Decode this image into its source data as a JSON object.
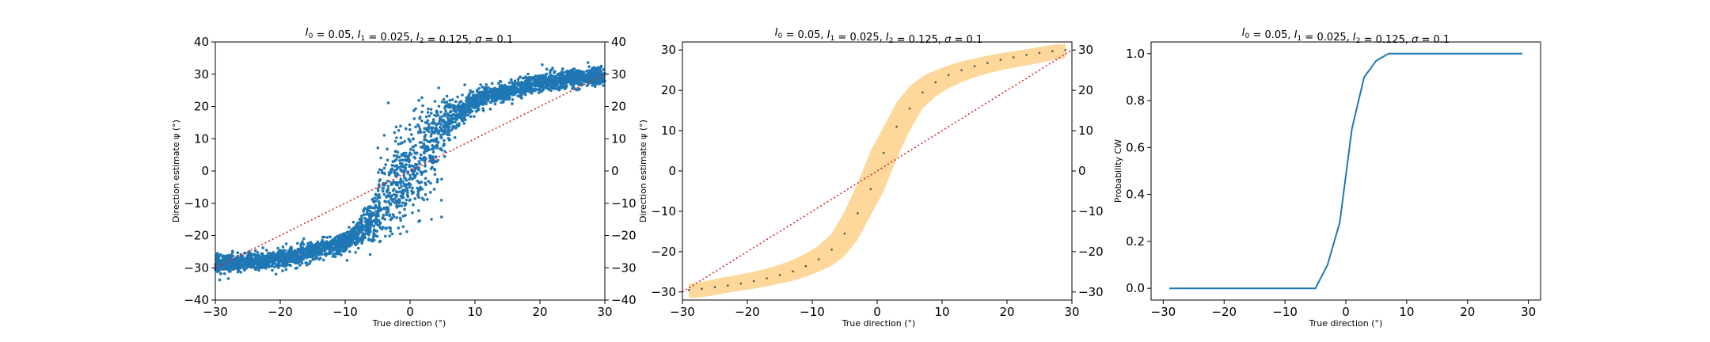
{
  "colors": {
    "scatter": "#1f77b4",
    "identity_line": "#d62728",
    "band": "#fdd89a",
    "mean_dots": "#555555",
    "curve": "#1f77b4"
  },
  "chart_data": [
    {
      "type": "scatter",
      "title": "I0 = 0.05, I1 = 0.025, I2 = 0.125, σ = 0.1",
      "title_parts": [
        "I",
        "0",
        " = 0.05, ",
        "I",
        "1",
        " = 0.025, ",
        "I",
        "2",
        " = 0.125, ",
        "σ",
        " = 0.1"
      ],
      "xlabel": "True direction (°)",
      "ylabel": "Direction estimate ψ (°)",
      "xlim": [
        -30,
        30
      ],
      "ylim": [
        -40,
        40
      ],
      "xticks": [
        "−30",
        "−20",
        "−10",
        "0",
        "10",
        "20",
        "30"
      ],
      "yticks_left": [
        "40",
        "30",
        "20",
        "10",
        "0",
        "−10",
        "−20",
        "−30",
        "−40"
      ],
      "yticks_right": [
        "40",
        "30",
        "20",
        "10",
        "0",
        "−10",
        "−20",
        "−30",
        "−40"
      ],
      "x_domain": [
        -30,
        30
      ],
      "description_model": "estimate follows a sigmoid of true direction: about −30 at x=−30, crossing 0 near x=0, about +30 at x=30, with spread of ~2–8 degrees",
      "sigmoid_anchor_points": [
        [
          -30,
          -29
        ],
        [
          -20,
          -27.5
        ],
        [
          -10,
          -22
        ],
        [
          -5,
          -14
        ],
        [
          0,
          0
        ],
        [
          5,
          14
        ],
        [
          10,
          22
        ],
        [
          20,
          27.5
        ],
        [
          30,
          29.5
        ]
      ],
      "identity_line": {
        "from": [
          -30,
          -30
        ],
        "to": [
          30,
          30
        ],
        "style": "dotted"
      },
      "grid": false
    },
    {
      "type": "area",
      "title": "I0 = 0.05, I1 = 0.025, I2 = 0.125, σ = 0.1",
      "title_parts": [
        "I",
        "0",
        " = 0.05, ",
        "I",
        "1",
        " = 0.025, ",
        "I",
        "2",
        " = 0.125, ",
        "σ",
        " = 0.1"
      ],
      "xlabel": "True direction (°)",
      "ylabel": "Direction estimate ψ (°)",
      "xlim": [
        -30,
        30
      ],
      "ylim": [
        -32,
        32
      ],
      "xticks": [
        "−30",
        "−20",
        "−10",
        "0",
        "10",
        "20",
        "30"
      ],
      "yticks_left": [
        "30",
        "20",
        "10",
        "0",
        "−10",
        "−20",
        "−30"
      ],
      "yticks_right": [
        "30",
        "20",
        "10",
        "0",
        "−10",
        "−20",
        "−30"
      ],
      "x": [
        -29,
        -27,
        -25,
        -23,
        -21,
        -19,
        -17,
        -15,
        -13,
        -11,
        -9,
        -7,
        -5,
        -3,
        -1,
        1,
        3,
        5,
        7,
        9,
        11,
        13,
        15,
        17,
        19,
        21,
        23,
        25,
        27,
        29
      ],
      "mean": [
        -29.5,
        -29.2,
        -28.8,
        -28.4,
        -27.9,
        -27.3,
        -26.6,
        -25.8,
        -24.9,
        -23.6,
        -21.9,
        -19.5,
        -15.5,
        -10.5,
        -4.5,
        4.5,
        11,
        15.5,
        19.5,
        22,
        23.8,
        25,
        26,
        26.8,
        27.6,
        28.2,
        28.8,
        29.3,
        29.7,
        30
      ],
      "upper": [
        -28,
        -27.5,
        -26.8,
        -26.2,
        -25.6,
        -25,
        -24.2,
        -23.2,
        -22,
        -20.5,
        -18.5,
        -15.5,
        -10,
        -3,
        5,
        11,
        17,
        21,
        23.5,
        25,
        26.2,
        27.2,
        27.9,
        28.6,
        29.2,
        29.7,
        30.2,
        30.8,
        31.3,
        31.5
      ],
      "lower": [
        -31.5,
        -31.3,
        -30.8,
        -30.2,
        -29.7,
        -29.2,
        -28.6,
        -27.9,
        -27.2,
        -26.2,
        -25,
        -23.5,
        -21,
        -17,
        -11,
        -5,
        3,
        10,
        15.5,
        18.5,
        20.5,
        22,
        23.2,
        24.2,
        25,
        25.6,
        26.2,
        26.8,
        27.5,
        28
      ]
    },
    {
      "type": "line",
      "title": "I0 = 0.05, I1 = 0.025, I2 = 0.125, σ = 0.1",
      "title_parts": [
        "I",
        "0",
        " = 0.05, ",
        "I",
        "1",
        " = 0.025, ",
        "I",
        "2",
        " = 0.125, ",
        "σ",
        " = 0.1"
      ],
      "xlabel": "True direction (°)",
      "ylabel": "Probability CW",
      "xlim": [
        -32,
        32
      ],
      "ylim": [
        -0.05,
        1.05
      ],
      "xticks": [
        "−30",
        "−20",
        "−10",
        "0",
        "10",
        "20",
        "30"
      ],
      "yticks": [
        "1.0",
        "0.8",
        "0.6",
        "0.4",
        "0.2",
        "0.0"
      ],
      "x": [
        -29,
        -27,
        -25,
        -23,
        -21,
        -19,
        -17,
        -15,
        -13,
        -11,
        -9,
        -7,
        -5,
        -3,
        -1,
        1,
        3,
        5,
        7,
        9,
        11,
        13,
        15,
        17,
        19,
        21,
        23,
        25,
        27,
        29
      ],
      "values": [
        0,
        0,
        0,
        0,
        0,
        0,
        0,
        0,
        0,
        0,
        0,
        0,
        0,
        0.1,
        0.28,
        0.68,
        0.9,
        0.97,
        1,
        1,
        1,
        1,
        1,
        1,
        1,
        1,
        1,
        1,
        1,
        1
      ]
    }
  ]
}
